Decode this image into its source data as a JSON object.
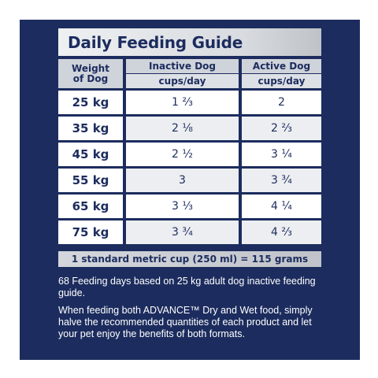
{
  "title": "Daily Feeding Guide",
  "header": {
    "weight": [
      "Weight",
      "of Dog"
    ],
    "inactive": {
      "name": "Inactive Dog",
      "unit": "cups/day"
    },
    "active": {
      "name": "Active Dog",
      "unit": "cups/day"
    }
  },
  "rows": [
    {
      "weight": "25 kg",
      "inactive": "1 ⅔",
      "active": "2"
    },
    {
      "weight": "35 kg",
      "inactive": "2 ⅛",
      "active": "2 ⅔"
    },
    {
      "weight": "45 kg",
      "inactive": "2 ½",
      "active": "3 ¼"
    },
    {
      "weight": "55 kg",
      "inactive": "3",
      "active": "3 ¾"
    },
    {
      "weight": "65 kg",
      "inactive": "3 ⅓",
      "active": "4 ¼"
    },
    {
      "weight": "75 kg",
      "inactive": "3 ¾",
      "active": "4 ⅔"
    }
  ],
  "footer": "1 standard metric cup (250 ml) = 115 grams",
  "notes": [
    "68 Feeding days based on 25 kg adult dog inactive feeding guide.",
    "When feeding both ADVANCE™ Dry and Wet food, simply halve the recommended quantities of each product and let your pet enjoy the benefits of both formats."
  ],
  "colors": {
    "navy": "#1c2c5e",
    "header_grey": "#cfd3da",
    "row_alt": "#eceef1"
  }
}
